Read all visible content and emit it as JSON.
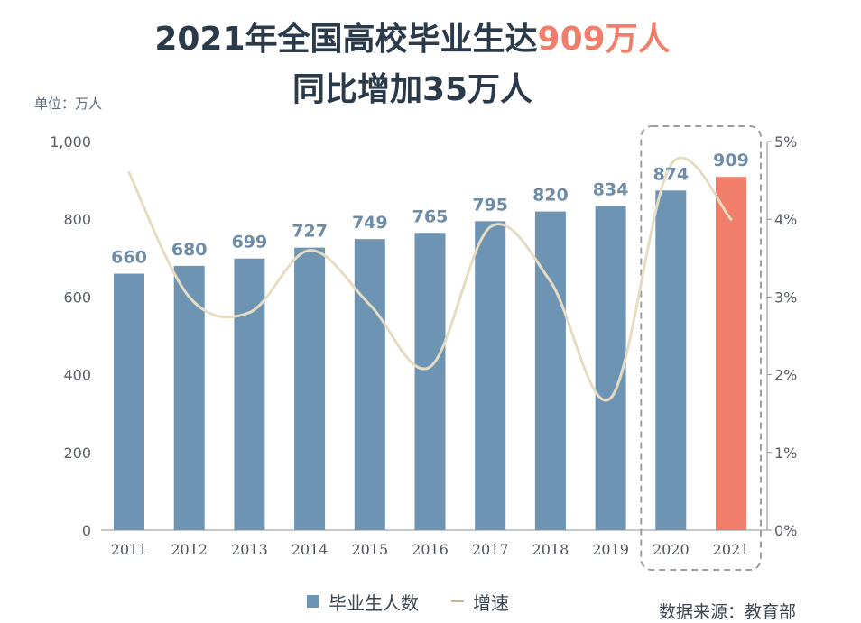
{
  "title": {
    "line1_prefix": "2021年全国高校毕业生达",
    "line1_highlight": "909万人",
    "line2": "同比增加35万人"
  },
  "unit_label": "单位：万人",
  "source": "数据来源：教育部",
  "legend": {
    "bar_label": "毕业生人数",
    "line_label": "增速"
  },
  "colors": {
    "bar": "#6d94b3",
    "highlight_bar": "#f07e6a",
    "line": "#e6dcc2",
    "title": "#2b3a4a"
  },
  "chart_data": {
    "type": "bar",
    "categories": [
      "2011",
      "2012",
      "2013",
      "2014",
      "2015",
      "2016",
      "2017",
      "2018",
      "2019",
      "2020",
      "2021"
    ],
    "series": [
      {
        "name": "毕业生人数",
        "type": "bar",
        "axis": "left",
        "values": [
          660,
          680,
          699,
          727,
          749,
          765,
          795,
          820,
          834,
          874,
          909
        ]
      },
      {
        "name": "增速",
        "type": "line",
        "axis": "right",
        "smooth": true,
        "values": [
          4.6,
          3.0,
          2.8,
          3.6,
          2.9,
          2.1,
          3.9,
          3.2,
          1.7,
          4.7,
          4.0
        ]
      }
    ],
    "left_axis": {
      "ylim": [
        0,
        1000
      ],
      "ticks": [
        "0",
        "200",
        "400",
        "600",
        "800",
        "1,000"
      ]
    },
    "right_axis": {
      "ylim": [
        0,
        5
      ],
      "ticks": [
        "0%",
        "1%",
        "2%",
        "3%",
        "4%",
        "5%"
      ]
    },
    "highlight_category": "2021",
    "dashed_box_categories": [
      "2020",
      "2021"
    ],
    "grid": false,
    "legend_position": "bottom"
  }
}
